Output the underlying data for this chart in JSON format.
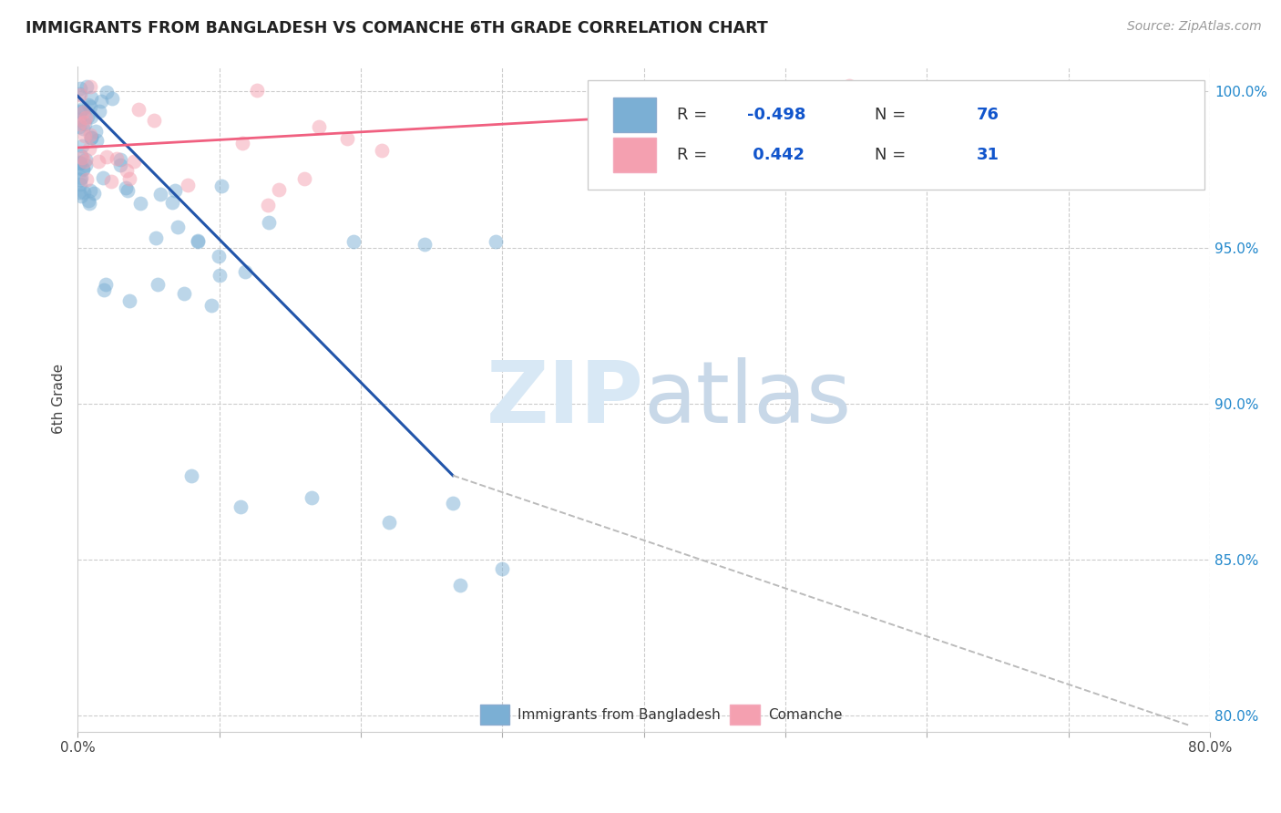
{
  "title": "IMMIGRANTS FROM BANGLADESH VS COMANCHE 6TH GRADE CORRELATION CHART",
  "source": "Source: ZipAtlas.com",
  "ylabel": "6th Grade",
  "xmin": 0.0,
  "xmax": 0.8,
  "ymin": 0.795,
  "ymax": 1.008,
  "yticks": [
    0.8,
    0.85,
    0.9,
    0.95,
    1.0
  ],
  "ytick_labels_right": [
    "80.0%",
    "85.0%",
    "90.0%",
    "95.0%",
    "100.0%"
  ],
  "xticks": [
    0.0,
    0.1,
    0.2,
    0.3,
    0.4,
    0.5,
    0.6,
    0.7,
    0.8
  ],
  "xtick_labels": [
    "0.0%",
    "",
    "",
    "",
    "",
    "",
    "",
    "",
    "80.0%"
  ],
  "legend_label1": "Immigrants from Bangladesh",
  "legend_label2": "Comanche",
  "R1": -0.498,
  "N1": 76,
  "R2": 0.442,
  "N2": 31,
  "color_blue": "#7BAFD4",
  "color_pink": "#F4A0B0",
  "color_line_blue": "#2255AA",
  "color_line_pink": "#F06080",
  "color_dashed": "#BBBBBB",
  "watermark_color": "#D8E8F5",
  "blue_line_x": [
    0.0,
    0.265
  ],
  "blue_line_y": [
    0.9985,
    0.877
  ],
  "dashed_line_x": [
    0.265,
    0.785
  ],
  "dashed_line_y": [
    0.877,
    0.797
  ],
  "pink_line_x": [
    0.0,
    0.795
  ],
  "pink_line_y": [
    0.982,
    1.002
  ]
}
